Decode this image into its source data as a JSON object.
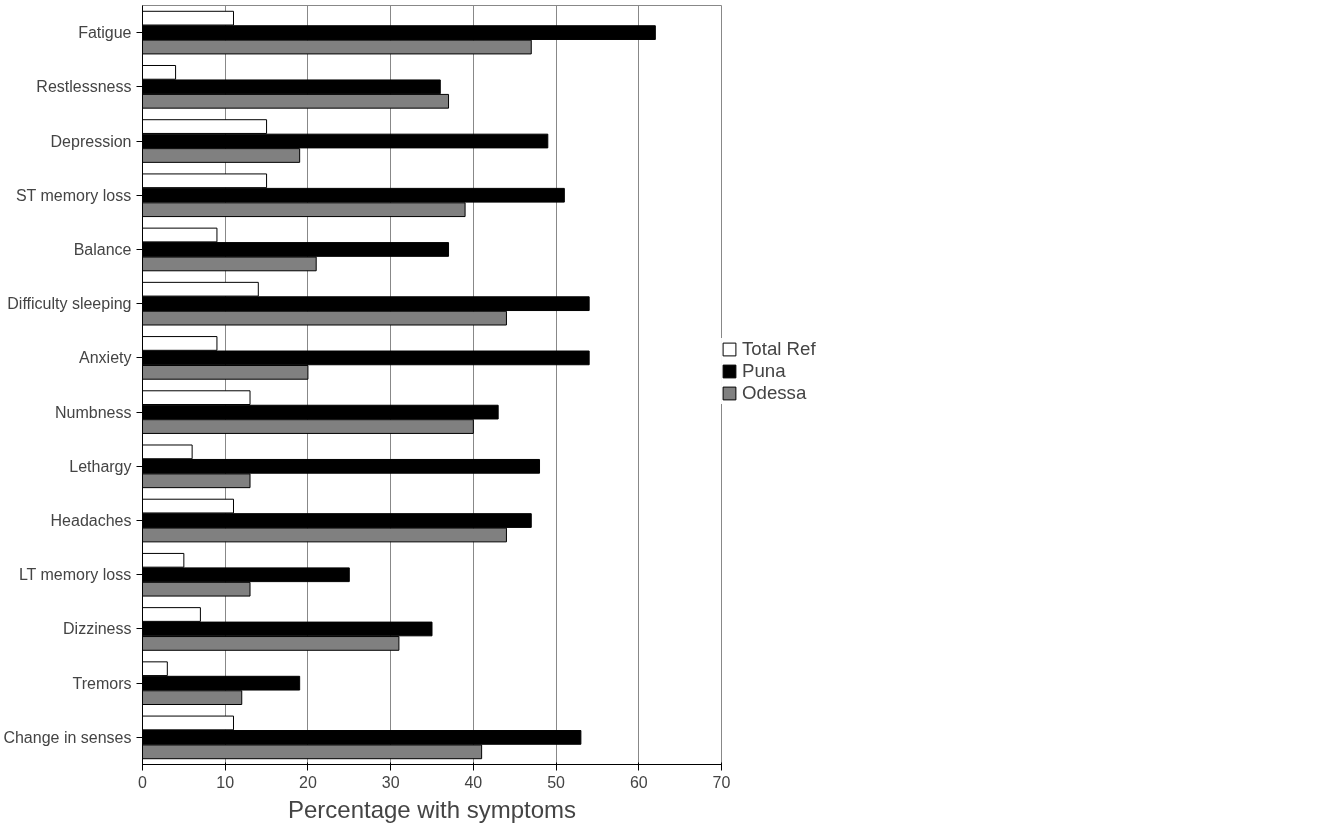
{
  "chart_data": {
    "type": "bar",
    "orientation": "horizontal",
    "xlabel": "Percentage with symptoms",
    "categories": [
      "Fatigue",
      "Restlessness",
      "Depression",
      "ST memory loss",
      "Balance",
      "Difficulty sleeping",
      "Anxiety",
      "Numbness",
      "Lethargy",
      "Headaches",
      "LT memory loss",
      "Dizziness",
      "Tremors",
      "Change in senses"
    ],
    "series": [
      {
        "name": "Total Ref",
        "color": "#ffffff",
        "values": [
          11,
          4,
          15,
          15,
          9,
          14,
          9,
          13,
          6,
          11,
          5,
          7,
          3,
          11
        ]
      },
      {
        "name": "Puna",
        "color": "#000000",
        "values": [
          62,
          36,
          49,
          51,
          37,
          54,
          54,
          43,
          48,
          47,
          25,
          35,
          19,
          53
        ]
      },
      {
        "name": "Odessa",
        "color": "#808080",
        "values": [
          47,
          37,
          19,
          39,
          21,
          44,
          20,
          40,
          13,
          44,
          13,
          31,
          12,
          41
        ]
      }
    ],
    "xlim": [
      0,
      70
    ],
    "xticks": [
      0,
      10,
      20,
      30,
      40,
      50,
      60,
      70
    ],
    "grid": "x",
    "legend": "right"
  }
}
